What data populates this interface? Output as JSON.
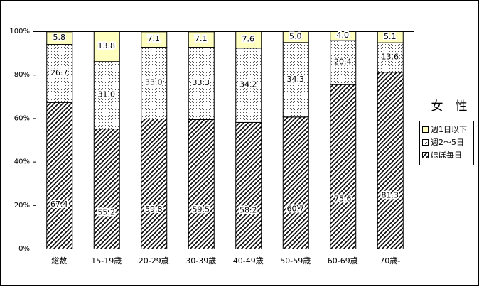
{
  "chart_data": {
    "type": "stacked_bar",
    "title": "女　性",
    "categories": [
      "総数",
      "15-19歳",
      "20-29歳",
      "30-39歳",
      "40-49歳",
      "50-59歳",
      "60-69歳",
      "70歳-"
    ],
    "series": [
      {
        "name": "ほぼ毎日",
        "color": "#ffffff",
        "values": [
          67.4,
          55.2,
          59.8,
          59.5,
          58.2,
          60.7,
          75.6,
          81.3
        ],
        "value_labels": [
          "67.4",
          "55.2",
          "59.8",
          "59.5",
          "58.2",
          "60.7",
          "75.6",
          "81.3"
        ]
      },
      {
        "name": "週2～5日",
        "color": "#ffffff",
        "values": [
          26.7,
          31.0,
          33.0,
          33.3,
          34.2,
          34.3,
          20.4,
          13.6
        ],
        "value_labels": [
          "26.7",
          "31.0",
          "33.0",
          "33.3",
          "34.2",
          "34.3",
          "20.4",
          "13.6"
        ]
      },
      {
        "name": "週1日以下",
        "color": "#ffffc0",
        "values": [
          5.8,
          13.8,
          7.1,
          7.1,
          7.6,
          5.0,
          4.0,
          5.1
        ],
        "value_labels": [
          "5.8",
          "13.8",
          "7.1",
          "7.1",
          "7.6",
          "5.0",
          "4.0",
          "5.1"
        ]
      }
    ],
    "ylim": [
      0,
      100
    ],
    "yticks": [
      {
        "value": 0,
        "label": "0%"
      },
      {
        "value": 20,
        "label": "20%"
      },
      {
        "value": 40,
        "label": "40%"
      },
      {
        "value": 60,
        "label": "60%"
      },
      {
        "value": 80,
        "label": "80%"
      },
      {
        "value": 100,
        "label": "100%"
      }
    ]
  }
}
